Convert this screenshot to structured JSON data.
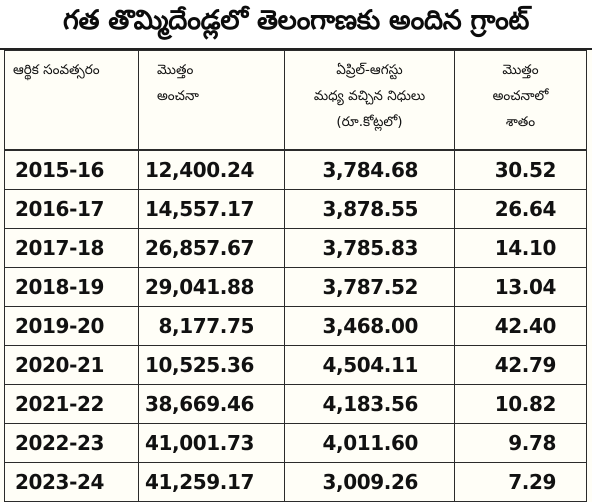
{
  "title": "గత తొమ్మిదేండ్లలో తెలంగాణకు అందిన గ్రాంట్",
  "headers": {
    "year": [
      "ఆర్థిక సంవత్సరం"
    ],
    "total": [
      "మొత్తం",
      "అంచనా"
    ],
    "funds": [
      "ఏప్రిల్‌-ఆగస్టు",
      "మధ్య వచ్చిన నిధులు",
      "(రూ.కోట్లలో)"
    ],
    "pct": [
      "మొత్తం",
      "అంచనాలో",
      "శాతం"
    ]
  },
  "rows": [
    {
      "year": "2015-16",
      "total": "12,400.24",
      "funds": "3,784.68",
      "pct": "30.52"
    },
    {
      "year": "2016-17",
      "total": "14,557.17",
      "funds": "3,878.55",
      "pct": "26.64"
    },
    {
      "year": "2017-18",
      "total": "26,857.67",
      "funds": "3,785.83",
      "pct": "14.10"
    },
    {
      "year": "2018-19",
      "total": "29,041.88",
      "funds": "3,787.52",
      "pct": "13.04"
    },
    {
      "year": "2019-20",
      "total": "8,177.75",
      "funds": "3,468.00",
      "pct": "42.40"
    },
    {
      "year": "2020-21",
      "total": "10,525.36",
      "funds": "4,504.11",
      "pct": "42.79"
    },
    {
      "year": "2021-22",
      "total": "38,669.46",
      "funds": "4,183.56",
      "pct": "10.82"
    },
    {
      "year": "2022-23",
      "total": "41,001.73",
      "funds": "4,011.60",
      "pct": "9.78"
    },
    {
      "year": "2023-24",
      "total": "41,259.17",
      "funds": "3,009.26",
      "pct": "7.29"
    }
  ],
  "colors": {
    "background": "#fffef7",
    "text": "#111111",
    "rule": "#2b2b2b"
  }
}
